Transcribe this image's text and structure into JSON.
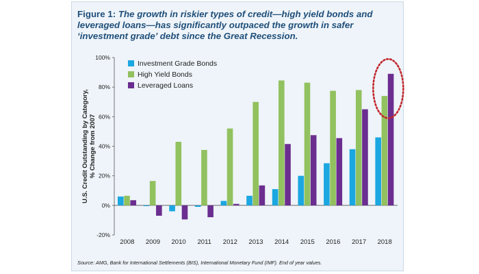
{
  "figure": {
    "label": "Figure 1:",
    "title": "The growth in riskier types of credit—high yield bonds and leveraged loans—has significantly outpaced the growth in safer ‘investment grade’ debt since the Great Recession.",
    "source": "Source: AMG, Bank for International Settlements (BIS), International Monetary Fund (IMF). End of year values."
  },
  "chart_data": {
    "type": "bar",
    "categories": [
      "2008",
      "2009",
      "2010",
      "2011",
      "2012",
      "2013",
      "2014",
      "2015",
      "2016",
      "2017",
      "2018"
    ],
    "series": [
      {
        "name": "Investment Grade Bonds",
        "color": "#1ba7e1",
        "values": [
          6,
          -0.5,
          -4,
          -1,
          3,
          6.5,
          11,
          20,
          28.5,
          38,
          46
        ]
      },
      {
        "name": "High Yield Bonds",
        "color": "#92c15f",
        "values": [
          6.5,
          16.5,
          43,
          37.5,
          52,
          70,
          84.5,
          83,
          77.5,
          78,
          74
        ]
      },
      {
        "name": "Leveraged Loans",
        "color": "#6b2d8f",
        "values": [
          3.5,
          -7,
          -9.5,
          -8,
          1,
          13.5,
          41.5,
          47.5,
          45.5,
          65,
          89
        ]
      }
    ],
    "ylabel": "U.S. Credit Outstanding by Category,\n% Change from 2007",
    "ylim": [
      -20,
      100
    ],
    "yticks": [
      -20,
      0,
      20,
      40,
      60,
      80,
      100
    ],
    "ytick_labels": [
      "-20%",
      "0%",
      "20%",
      "40%",
      "60%",
      "80%",
      "100%"
    ],
    "grid": false,
    "legend": "top-left",
    "annotation": {
      "type": "dashed-ellipse",
      "category": "2018",
      "series": "Leveraged Loans",
      "color": "#c1272d"
    }
  }
}
